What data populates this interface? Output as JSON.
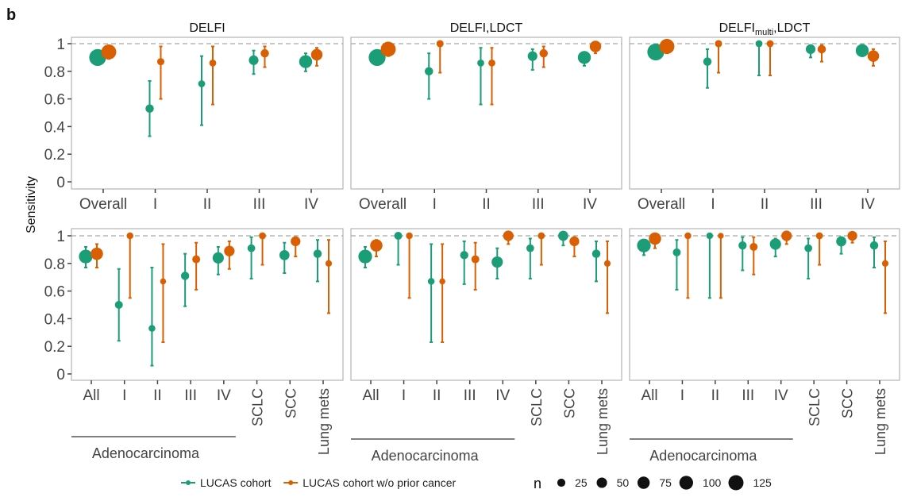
{
  "figure_label": "b",
  "chart_data": {
    "type": "scatter",
    "subtype": "dot-with-errorbars",
    "ylabel": "Sensitivity",
    "ylim": [
      0,
      1
    ],
    "yticks": [
      0,
      0.2,
      0.4,
      0.6,
      0.8,
      1
    ],
    "ytick_labels": [
      "0",
      "0.2",
      "0.4",
      "0.6",
      "0.8",
      "1"
    ],
    "reference_line": 1,
    "grid": false,
    "colors": {
      "LUCAS cohort": "#1b9e77",
      "LUCAS cohort w/o prior cancer": "#d95f02"
    },
    "legend": {
      "placement": "bottom",
      "series": [
        "LUCAS cohort",
        "LUCAS cohort w/o prior cancer"
      ],
      "size_title": "n",
      "size_values": [
        25,
        50,
        75,
        100,
        125
      ],
      "size_labels": [
        "25",
        "50",
        "75",
        "100",
        "125"
      ]
    },
    "columns": [
      "DELFI",
      "DELFI,LDCT",
      "DELFI_multi,LDCT"
    ],
    "column_titles": [
      {
        "main": "DELFI",
        "sub": "",
        "tail": ""
      },
      {
        "main": "DELFI,LDCT",
        "sub": "",
        "tail": ""
      },
      {
        "main": "DELFI",
        "sub": "multi",
        "tail": ",LDCT"
      }
    ],
    "rows": [
      {
        "row": "stage",
        "categories": [
          "Overall",
          "I",
          "II",
          "III",
          "IV"
        ],
        "group_bracket": null,
        "panels": [
          {
            "title": "DELFI",
            "series": [
              {
                "name": "LUCAS cohort",
                "values": [
                  0.9,
                  0.53,
                  0.71,
                  0.88,
                  0.87
                ],
                "lower": [
                  0.88,
                  0.33,
                  0.41,
                  0.78,
                  0.8
                ],
                "upper": [
                  0.92,
                  0.73,
                  0.91,
                  0.95,
                  0.93
                ],
                "n": [
                  129,
                  15,
                  7,
                  25,
                  63
                ]
              },
              {
                "name": "LUCAS cohort w/o prior cancer",
                "values": [
                  0.94,
                  0.87,
                  0.86,
                  0.93,
                  0.92
                ],
                "lower": [
                  0.89,
                  0.6,
                  0.56,
                  0.83,
                  0.84
                ],
                "upper": [
                  0.97,
                  0.98,
                  0.98,
                  0.98,
                  0.97
                ],
                "n": [
                  94,
                  8,
                  7,
                  15,
                  44
                ]
              }
            ]
          },
          {
            "title": "DELFI,LDCT",
            "series": [
              {
                "name": "LUCAS cohort",
                "values": [
                  0.9,
                  0.8,
                  0.86,
                  0.91,
                  0.9
                ],
                "lower": [
                  0.88,
                  0.6,
                  0.56,
                  0.81,
                  0.84
                ],
                "upper": [
                  0.92,
                  0.93,
                  0.97,
                  0.96,
                  0.94
                ],
                "n": [
                  129,
                  15,
                  7,
                  25,
                  63
                ]
              },
              {
                "name": "LUCAS cohort w/o prior cancer",
                "values": [
                  0.96,
                  1.0,
                  0.86,
                  0.93,
                  0.98
                ],
                "lower": [
                  0.91,
                  0.79,
                  0.56,
                  0.83,
                  0.93
                ],
                "upper": [
                  0.99,
                  1.0,
                  0.97,
                  0.98,
                  1.0
                ],
                "n": [
                  94,
                  8,
                  7,
                  15,
                  44
                ]
              }
            ]
          },
          {
            "title": "DELFI_multi,LDCT",
            "series": [
              {
                "name": "LUCAS cohort",
                "values": [
                  0.94,
                  0.87,
                  1.0,
                  0.96,
                  0.95
                ],
                "lower": [
                  0.92,
                  0.68,
                  0.77,
                  0.9,
                  0.91
                ],
                "upper": [
                  0.96,
                  0.96,
                  1.0,
                  0.99,
                  0.97
                ],
                "n": [
                  129,
                  15,
                  7,
                  25,
                  63
                ]
              },
              {
                "name": "LUCAS cohort w/o prior cancer",
                "values": [
                  0.98,
                  1.0,
                  1.0,
                  0.96,
                  0.91
                ],
                "lower": [
                  0.93,
                  0.79,
                  0.77,
                  0.87,
                  0.84
                ],
                "upper": [
                  1.0,
                  1.0,
                  1.0,
                  0.99,
                  0.96
                ],
                "n": [
                  94,
                  8,
                  7,
                  15,
                  44
                ]
              }
            ]
          }
        ]
      },
      {
        "row": "histology",
        "categories": [
          "All",
          "I",
          "II",
          "III",
          "IV",
          "SCLC",
          "SCC",
          "Lung mets"
        ],
        "group_bracket": {
          "label": "Adenocarcinoma",
          "from": 0,
          "to": 4
        },
        "panels": [
          {
            "title": "DELFI",
            "series": [
              {
                "name": "LUCAS cohort",
                "values": [
                  0.85,
                  0.5,
                  0.33,
                  0.71,
                  0.84,
                  0.91,
                  0.86,
                  0.87
                ],
                "lower": [
                  0.77,
                  0.24,
                  0.06,
                  0.49,
                  0.72,
                  0.69,
                  0.73,
                  0.67
                ],
                "upper": [
                  0.92,
                  0.76,
                  0.77,
                  0.87,
                  0.92,
                  0.99,
                  0.95,
                  0.97
                ],
                "n": [
                  73,
                  12,
                  6,
                  14,
                  41,
                  11,
                  29,
                  15
                ]
              },
              {
                "name": "LUCAS cohort w/o prior cancer",
                "values": [
                  0.87,
                  1.0,
                  0.67,
                  0.83,
                  0.89,
                  1.0,
                  0.96,
                  0.8
                ],
                "lower": [
                  0.77,
                  0.55,
                  0.23,
                  0.61,
                  0.76,
                  0.79,
                  0.85,
                  0.44
                ],
                "upper": [
                  0.94,
                  1.0,
                  0.94,
                  0.95,
                  0.96,
                  1.0,
                  0.99,
                  0.97
                ],
                "n": [
                  54,
                  6,
                  3,
                  12,
                  33,
                  7,
                  26,
                  5
                ]
              }
            ]
          },
          {
            "title": "DELFI,LDCT",
            "series": [
              {
                "name": "LUCAS cohort",
                "values": [
                  0.85,
                  1.0,
                  0.67,
                  0.86,
                  0.81,
                  0.91,
                  1.0,
                  0.87
                ],
                "lower": [
                  0.77,
                  0.79,
                  0.23,
                  0.65,
                  0.69,
                  0.69,
                  0.93,
                  0.67
                ],
                "upper": [
                  0.92,
                  1.0,
                  0.94,
                  0.96,
                  0.91,
                  0.98,
                  1.0,
                  0.96
                ],
                "n": [
                  73,
                  12,
                  6,
                  14,
                  41,
                  11,
                  29,
                  15
                ]
              },
              {
                "name": "LUCAS cohort w/o prior cancer",
                "values": [
                  0.93,
                  1.0,
                  0.67,
                  0.83,
                  1.0,
                  1.0,
                  0.96,
                  0.8
                ],
                "lower": [
                  0.85,
                  0.55,
                  0.23,
                  0.61,
                  0.94,
                  0.79,
                  0.85,
                  0.44
                ],
                "upper": [
                  0.97,
                  1.0,
                  0.94,
                  0.95,
                  1.0,
                  1.0,
                  0.99,
                  0.96
                ],
                "n": [
                  54,
                  6,
                  3,
                  12,
                  33,
                  7,
                  26,
                  5
                ]
              }
            ]
          },
          {
            "title": "DELFI_multi,LDCT",
            "series": [
              {
                "name": "LUCAS cohort",
                "values": [
                  0.93,
                  0.88,
                  1.0,
                  0.93,
                  0.94,
                  0.91,
                  0.96,
                  0.93
                ],
                "lower": [
                  0.86,
                  0.61,
                  0.55,
                  0.75,
                  0.85,
                  0.69,
                  0.87,
                  0.77
                ],
                "upper": [
                  0.97,
                  0.97,
                  1.0,
                  0.99,
                  0.98,
                  0.98,
                  0.99,
                  0.99
                ],
                "n": [
                  73,
                  12,
                  6,
                  14,
                  41,
                  11,
                  29,
                  15
                ]
              },
              {
                "name": "LUCAS cohort w/o prior cancer",
                "values": [
                  0.98,
                  1.0,
                  1.0,
                  0.92,
                  1.0,
                  1.0,
                  1.0,
                  0.8
                ],
                "lower": [
                  0.91,
                  0.55,
                  0.55,
                  0.72,
                  0.94,
                  0.79,
                  0.95,
                  0.44
                ],
                "upper": [
                  1.0,
                  1.0,
                  1.0,
                  0.99,
                  1.0,
                  1.0,
                  1.0,
                  0.96
                ],
                "n": [
                  54,
                  6,
                  3,
                  12,
                  33,
                  7,
                  26,
                  5
                ]
              }
            ]
          }
        ]
      }
    ]
  }
}
